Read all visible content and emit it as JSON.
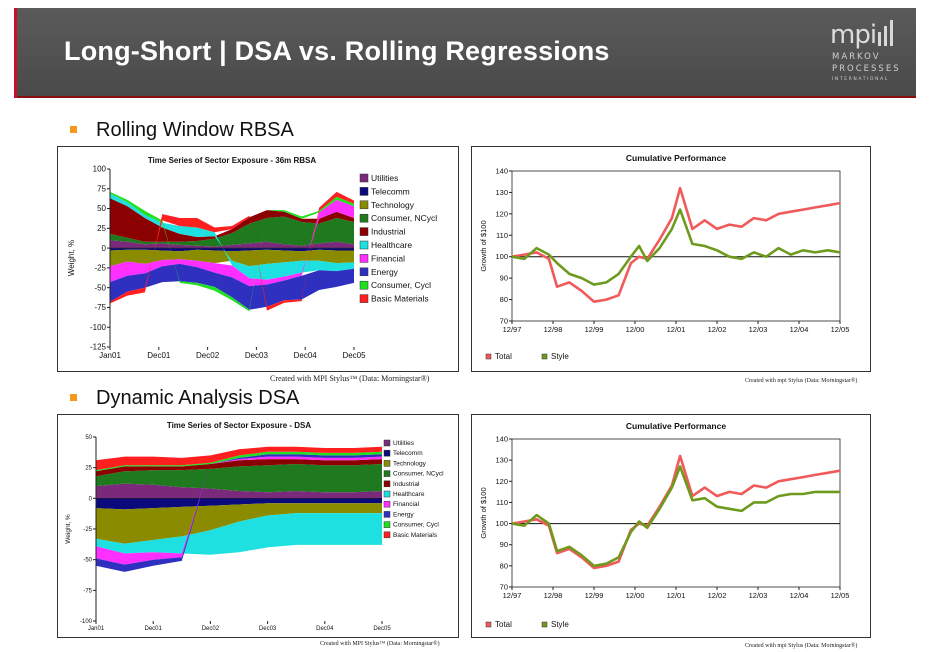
{
  "slide": {
    "title": "Long-Short | DSA vs. Rolling Regressions",
    "logo": {
      "main": "mpi",
      "line1": "MARKOV",
      "line2": "PROCESSES",
      "line3": "INTERNATIONAL"
    }
  },
  "sections": [
    {
      "title": "Rolling Window RBSA"
    },
    {
      "title": "Dynamic Analysis DSA"
    }
  ],
  "credits": {
    "top_left": "Created with MPI Stylus™ (Data: Morningstar®)",
    "top_right": "Created with mpi Stylus (Data: Morningstar®)",
    "bottom_left": "Created with MPI Stylus™ (Data: Morningstar®)",
    "bottom_right": "Created with mpi Stylus (Data: Morningstar®)"
  },
  "colors": {
    "header_bg": "#505050",
    "header_accent": "#c8102e",
    "bullet": "#f39a1a",
    "total": "#f05a5a",
    "style": "#6e9a1e"
  },
  "chart_data": [
    {
      "type": "area",
      "title": "Time Series of Sector Exposure - 36m RBSA",
      "ylabel": "Weight, %",
      "xlabel": "",
      "ylim": [
        -125,
        100
      ],
      "yticks": [
        "100",
        "75",
        "50",
        "25",
        "0",
        "-25",
        "-50",
        "-75",
        "-100",
        "-125"
      ],
      "xticks": [
        "Jan01",
        "Dec01",
        "Dec02",
        "Dec03",
        "Dec04",
        "Dec05"
      ],
      "legend_position": "right",
      "series": [
        {
          "name": "Utilities",
          "color": "#7b2a7b",
          "values": [
            10,
            8,
            5,
            6,
            4,
            3,
            2,
            4,
            6,
            8,
            5,
            3,
            6,
            8,
            5
          ]
        },
        {
          "name": "Telecomm",
          "color": "#0a0a7a",
          "values": [
            -3,
            -2,
            -2,
            -3,
            -4,
            -2,
            -3,
            -4,
            -3,
            -2,
            -3,
            -4,
            -2,
            -3,
            -3
          ]
        },
        {
          "name": "Technology",
          "color": "#8b8b00",
          "values": [
            -20,
            -15,
            -18,
            -12,
            -10,
            -14,
            -16,
            -12,
            -20,
            -18,
            -15,
            -12,
            -14,
            -16,
            -15
          ]
        },
        {
          "name": "Consumer, NCycl",
          "color": "#1f7a1f",
          "values": [
            8,
            5,
            3,
            2,
            4,
            6,
            10,
            15,
            25,
            30,
            35,
            30,
            25,
            30,
            28
          ]
        },
        {
          "name": "Industrial",
          "color": "#8b0000",
          "values": [
            45,
            40,
            30,
            18,
            10,
            5,
            3,
            5,
            8,
            10,
            6,
            4,
            6,
            8,
            5
          ]
        },
        {
          "name": "Healthcare",
          "color": "#1fe0e0",
          "values": [
            6,
            5,
            4,
            6,
            10,
            12,
            5,
            -6,
            -15,
            -20,
            -18,
            -15,
            -12,
            -10,
            -8
          ]
        },
        {
          "name": "Financial",
          "color": "#ff30ff",
          "values": [
            -20,
            -18,
            -12,
            -8,
            -6,
            -8,
            -12,
            -15,
            -10,
            -6,
            -5,
            -4,
            8,
            15,
            15
          ]
        },
        {
          "name": "Energy",
          "color": "#3030c0",
          "values": [
            -25,
            -20,
            -18,
            -20,
            -22,
            -20,
            -18,
            -25,
            -30,
            -28,
            -25,
            -30,
            -25,
            -20,
            -18
          ]
        },
        {
          "name": "Consumer, Cycl",
          "color": "#20e020",
          "values": [
            2,
            3,
            5,
            3,
            -2,
            -3,
            -5,
            -4,
            -2,
            0,
            2,
            3,
            2,
            4,
            3
          ]
        },
        {
          "name": "Basic Materials",
          "color": "#ff1f1f",
          "values": [
            -2,
            -5,
            -6,
            8,
            10,
            12,
            6,
            4,
            2,
            -5,
            -3,
            -2,
            4,
            6,
            4
          ]
        }
      ]
    },
    {
      "type": "line",
      "title": "Cumulative Performance",
      "xlabel": "",
      "ylabel": "Growth of $100",
      "ylim": [
        70,
        140
      ],
      "yticks": [
        "140",
        "130",
        "120",
        "110",
        "100",
        "90",
        "80",
        "70"
      ],
      "xticks": [
        "12/97",
        "12/98",
        "12/99",
        "12/00",
        "12/01",
        "12/02",
        "12/03",
        "12/04",
        "12/05"
      ],
      "x": [
        1997.9,
        1998.2,
        1998.5,
        1998.8,
        1999.0,
        1999.3,
        1999.6,
        1999.9,
        2000.2,
        2000.5,
        2000.8,
        2001.0,
        2001.2,
        2001.5,
        2001.8,
        2002.0,
        2002.3,
        2002.6,
        2002.9,
        2003.2,
        2003.5,
        2003.8,
        2004.1,
        2004.4,
        2004.7,
        2005.0,
        2005.3,
        2005.6,
        2005.9
      ],
      "reference_line": 100,
      "legend_position": "bottom",
      "series": [
        {
          "name": "Total",
          "color": "#f05a5a",
          "values": [
            100,
            101,
            102,
            99,
            86,
            88,
            84,
            79,
            80,
            82,
            97,
            100,
            99,
            108,
            118,
            132,
            113,
            117,
            113,
            115,
            114,
            118,
            117,
            120,
            121,
            122,
            123,
            124,
            125
          ]
        },
        {
          "name": "Style",
          "color": "#6e9a1e",
          "values": [
            100,
            99,
            104,
            101,
            97,
            92,
            90,
            87,
            88,
            92,
            100,
            105,
            98,
            104,
            113,
            122,
            106,
            105,
            103,
            100,
            99,
            102,
            100,
            104,
            101,
            103,
            102,
            103,
            102
          ]
        }
      ]
    },
    {
      "type": "area",
      "title": "Time Series of Sector Exposure - DSA",
      "ylabel": "Weight, %",
      "xlabel": "",
      "ylim": [
        -100,
        50
      ],
      "yticks": [
        "50",
        "25",
        "0",
        "-25",
        "-50",
        "-75",
        "-100"
      ],
      "xticks": [
        "Jan01",
        "Dec01",
        "Dec02",
        "Dec03",
        "Dec04",
        "Dec05"
      ],
      "legend_position": "right",
      "series": [
        {
          "name": "Utilities",
          "color": "#7b2a7b",
          "values": [
            10,
            12,
            11,
            9,
            8,
            6,
            5,
            6,
            5,
            5,
            6
          ]
        },
        {
          "name": "Telecomm",
          "color": "#0a0a7a",
          "values": [
            -8,
            -9,
            -8,
            -7,
            -6,
            -5,
            -4,
            -4,
            -4,
            -4,
            -4
          ]
        },
        {
          "name": "Technology",
          "color": "#8b8b00",
          "values": [
            -25,
            -28,
            -26,
            -24,
            -20,
            -14,
            -10,
            -8,
            -8,
            -8,
            -8
          ]
        },
        {
          "name": "Consumer, NCycl",
          "color": "#1f7a1f",
          "values": [
            8,
            10,
            12,
            14,
            16,
            20,
            22,
            22,
            22,
            22,
            22
          ]
        },
        {
          "name": "Industrial",
          "color": "#8b0000",
          "values": [
            4,
            4,
            3,
            3,
            4,
            5,
            5,
            4,
            4,
            4,
            4
          ]
        },
        {
          "name": "Healthcare",
          "color": "#1fe0e0",
          "values": [
            -6,
            -8,
            -10,
            -14,
            -20,
            -25,
            -26,
            -26,
            -26,
            -26,
            -26
          ]
        },
        {
          "name": "Financial",
          "color": "#ff30ff",
          "values": [
            -10,
            -9,
            -6,
            -3,
            0,
            1,
            2,
            2,
            2,
            2,
            2
          ]
        },
        {
          "name": "Energy",
          "color": "#3030c0",
          "values": [
            -6,
            -6,
            -5,
            -3,
            0,
            1,
            2,
            2,
            2,
            2,
            2
          ]
        },
        {
          "name": "Consumer, Cycl",
          "color": "#20e020",
          "values": [
            1,
            1,
            1,
            1,
            1,
            2,
            2,
            2,
            2,
            2,
            2
          ]
        },
        {
          "name": "Basic Materials",
          "color": "#ff1f1f",
          "values": [
            8,
            7,
            7,
            6,
            6,
            5,
            4,
            4,
            4,
            4,
            4
          ]
        }
      ]
    },
    {
      "type": "line",
      "title": "Cumulative Performance",
      "xlabel": "",
      "ylabel": "Growth of $100",
      "ylim": [
        70,
        140
      ],
      "yticks": [
        "140",
        "130",
        "120",
        "110",
        "100",
        "90",
        "80",
        "70"
      ],
      "xticks": [
        "12/97",
        "12/98",
        "12/99",
        "12/00",
        "12/01",
        "12/02",
        "12/03",
        "12/04",
        "12/05"
      ],
      "x": [
        1997.9,
        1998.2,
        1998.5,
        1998.8,
        1999.0,
        1999.3,
        1999.6,
        1999.9,
        2000.2,
        2000.5,
        2000.8,
        2001.0,
        2001.2,
        2001.5,
        2001.8,
        2002.0,
        2002.3,
        2002.6,
        2002.9,
        2003.2,
        2003.5,
        2003.8,
        2004.1,
        2004.4,
        2004.7,
        2005.0,
        2005.3,
        2005.6,
        2005.9
      ],
      "reference_line": 100,
      "legend_position": "bottom",
      "series": [
        {
          "name": "Total",
          "color": "#f05a5a",
          "values": [
            100,
            101,
            102,
            99,
            86,
            88,
            84,
            79,
            80,
            82,
            97,
            100,
            99,
            108,
            118,
            132,
            113,
            117,
            113,
            115,
            114,
            118,
            117,
            120,
            121,
            122,
            123,
            124,
            125
          ]
        },
        {
          "name": "Style",
          "color": "#6e9a1e",
          "values": [
            100,
            99,
            104,
            100,
            87,
            89,
            85,
            80,
            81,
            84,
            96,
            101,
            98,
            107,
            117,
            127,
            111,
            112,
            108,
            107,
            106,
            110,
            110,
            113,
            114,
            114,
            115,
            115,
            115
          ]
        }
      ]
    }
  ]
}
